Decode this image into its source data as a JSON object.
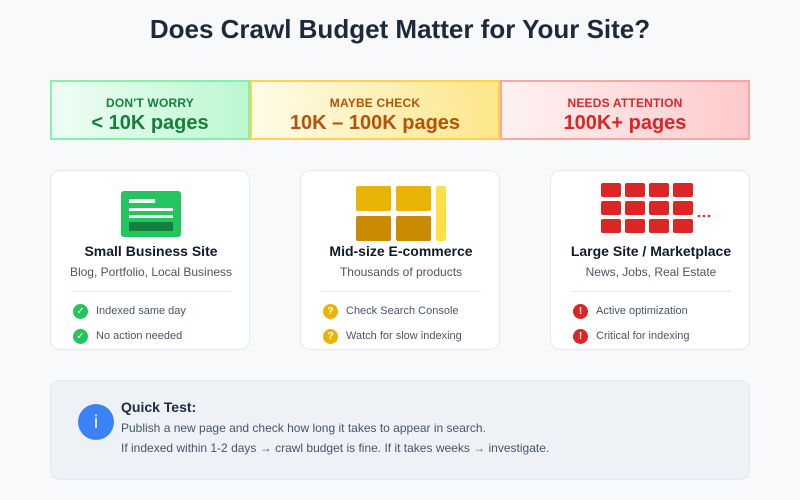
{
  "title": "Does Crawl Budget Matter for Your Site?",
  "bands": [
    {
      "label": "DON'T WORRY",
      "range": "< 10K pages",
      "color": "#15803d"
    },
    {
      "label": "MAYBE CHECK",
      "range": "10K – 100K pages",
      "color": "#b45309"
    },
    {
      "label": "NEEDS ATTENTION",
      "range": "100K+ pages",
      "color": "#dc2626"
    }
  ],
  "cards": [
    {
      "name": "Small Business Site",
      "subtitle": "Blog, Portfolio, Local Business",
      "icon": "document-icon",
      "items": [
        {
          "icon": "check-icon",
          "text": "Indexed same day"
        },
        {
          "icon": "check-icon",
          "text": "No action needed"
        }
      ]
    },
    {
      "name": "Mid-size E-commerce",
      "subtitle": "Thousands of products",
      "icon": "grid-icon",
      "items": [
        {
          "icon": "question-icon",
          "text": "Check Search Console"
        },
        {
          "icon": "question-icon",
          "text": "Watch for slow indexing"
        }
      ]
    },
    {
      "name": "Large Site / Marketplace",
      "subtitle": "News, Jobs, Real Estate",
      "icon": "many-pages-icon",
      "items": [
        {
          "icon": "exclamation-icon",
          "text": "Active optimization"
        },
        {
          "icon": "exclamation-icon",
          "text": "Critical for indexing"
        }
      ]
    }
  ],
  "quick_test": {
    "title": "Quick Test:",
    "line1": "Publish a new page and check how long it takes to appear in search.",
    "line2": "If indexed within 1-2 days → crawl budget is fine. If it takes weeks → investigate.",
    "icon": "info-icon"
  },
  "colors": {
    "green": "#22c55e",
    "yellow": "#eab308",
    "red": "#dc2626",
    "blue": "#3b82f6"
  }
}
